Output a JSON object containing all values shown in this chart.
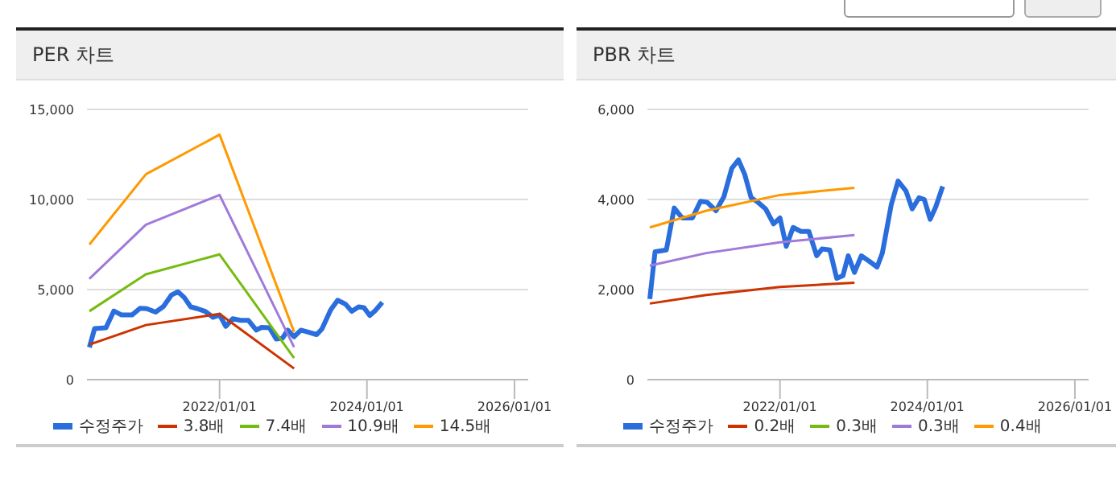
{
  "chart_data": [
    {
      "type": "line",
      "title": "PER 차트",
      "xlim": [
        "2020-03-15",
        "2026-03-10"
      ],
      "xticks": [
        {
          "value": "2022-01-01",
          "label": "2022/01/01"
        },
        {
          "value": "2024-01-01",
          "label": "2024/01/01"
        },
        {
          "value": "2026-01-01",
          "label": "2026/01/01"
        }
      ],
      "ylim": [
        0,
        15000
      ],
      "yticks": [
        {
          "value": 0,
          "label": "0"
        },
        {
          "value": 5000,
          "label": "5,000"
        },
        {
          "value": 10000,
          "label": "10,000"
        },
        {
          "value": 15000,
          "label": "15,000"
        }
      ],
      "grid": "y",
      "legend": "bottom",
      "series": [
        {
          "name": "수정주가",
          "color": "#2a6ddd",
          "x": [
            "2020-03-27",
            "2020-04-22",
            "2020-06-17",
            "2020-07-26",
            "2020-09-03",
            "2020-10-24",
            "2020-12-03",
            "2021-01-05",
            "2021-02-18",
            "2021-03-29",
            "2021-05-07",
            "2021-06-09",
            "2021-07-10",
            "2021-08-11",
            "2021-09-13",
            "2021-10-22",
            "2021-11-30",
            "2022-01-01",
            "2022-02-01",
            "2022-03-07",
            "2022-04-15",
            "2022-05-24",
            "2022-07-02",
            "2022-07-28",
            "2022-09-05",
            "2022-10-09",
            "2022-11-09",
            "2022-12-05",
            "2023-01-05",
            "2023-02-08",
            "2023-03-19",
            "2023-04-27",
            "2023-05-23",
            "2023-07-06",
            "2023-08-09",
            "2023-09-17",
            "2023-10-18",
            "2023-11-21",
            "2023-12-17",
            "2024-01-15",
            "2024-02-12",
            "2024-03-17"
          ],
          "values": [
            1790,
            2840,
            2880,
            3810,
            3590,
            3590,
            3960,
            3940,
            3750,
            4060,
            4690,
            4880,
            4560,
            4040,
            3940,
            3790,
            3460,
            3590,
            2960,
            3380,
            3290,
            3290,
            2750,
            2900,
            2880,
            2250,
            2310,
            2750,
            2380,
            2750,
            2630,
            2500,
            2810,
            3880,
            4410,
            4190,
            3790,
            4040,
            4000,
            3560,
            3840,
            4290
          ]
        },
        {
          "name": "3.8배",
          "color": "#cc3300",
          "x": [
            "2020-03-27",
            "2021-01-01",
            "2022-01-01",
            "2023-01-05"
          ],
          "values": [
            1950,
            3030,
            3650,
            620
          ]
        },
        {
          "name": "7.4배",
          "color": "#77bb11",
          "x": [
            "2020-03-27",
            "2021-01-01",
            "2022-01-01",
            "2023-01-05"
          ],
          "values": [
            3800,
            5850,
            6950,
            1200
          ]
        },
        {
          "name": "10.9배",
          "color": "#a07ad8",
          "x": [
            "2020-03-27",
            "2021-01-01",
            "2022-01-01",
            "2023-01-05"
          ],
          "values": [
            5600,
            8600,
            10250,
            1800
          ]
        },
        {
          "name": "14.5배",
          "color": "#ff9900",
          "x": [
            "2020-03-27",
            "2021-01-01",
            "2022-01-01",
            "2023-01-05"
          ],
          "values": [
            7500,
            11400,
            13600,
            2650
          ]
        }
      ]
    },
    {
      "type": "line",
      "title": "PBR 차트",
      "xlim": [
        "2020-03-15",
        "2026-03-10"
      ],
      "xticks": [
        {
          "value": "2022-01-01",
          "label": "2022/01/01"
        },
        {
          "value": "2024-01-01",
          "label": "2024/01/01"
        },
        {
          "value": "2026-01-01",
          "label": "2026/01/01"
        }
      ],
      "ylim": [
        0,
        6000
      ],
      "yticks": [
        {
          "value": 0,
          "label": "0"
        },
        {
          "value": 2000,
          "label": "2,000"
        },
        {
          "value": 4000,
          "label": "4,000"
        },
        {
          "value": 6000,
          "label": "6,000"
        }
      ],
      "grid": "y",
      "legend": "bottom",
      "series": [
        {
          "name": "수정주가",
          "color": "#2a6ddd",
          "x": [
            "2020-03-27",
            "2020-04-22",
            "2020-06-17",
            "2020-07-26",
            "2020-09-03",
            "2020-10-24",
            "2020-12-03",
            "2021-01-05",
            "2021-02-18",
            "2021-03-29",
            "2021-05-07",
            "2021-06-09",
            "2021-07-10",
            "2021-08-11",
            "2021-09-13",
            "2021-10-22",
            "2021-11-30",
            "2022-01-01",
            "2022-02-01",
            "2022-03-07",
            "2022-04-15",
            "2022-05-24",
            "2022-07-02",
            "2022-07-28",
            "2022-09-05",
            "2022-10-09",
            "2022-11-09",
            "2022-12-05",
            "2023-01-05",
            "2023-02-08",
            "2023-03-19",
            "2023-04-27",
            "2023-05-23",
            "2023-07-06",
            "2023-08-09",
            "2023-09-17",
            "2023-10-18",
            "2023-11-21",
            "2023-12-17",
            "2024-01-15",
            "2024-02-12",
            "2024-03-17"
          ],
          "values": [
            1790,
            2840,
            2880,
            3810,
            3590,
            3590,
            3960,
            3940,
            3750,
            4060,
            4690,
            4880,
            4560,
            4040,
            3940,
            3790,
            3460,
            3590,
            2960,
            3380,
            3290,
            3290,
            2750,
            2900,
            2880,
            2250,
            2310,
            2750,
            2380,
            2750,
            2630,
            2500,
            2810,
            3880,
            4410,
            4190,
            3790,
            4040,
            4000,
            3560,
            3840,
            4290
          ]
        },
        {
          "name": "0.2배",
          "color": "#cc3300",
          "x": [
            "2020-03-27",
            "2021-01-01",
            "2022-01-01",
            "2023-01-05"
          ],
          "values": [
            1690,
            1880,
            2060,
            2150
          ]
        },
        {
          "name": "0.3배",
          "color": "#77bb11"
        },
        {
          "name": "0.3배",
          "color": "#a07ad8",
          "x": [
            "2020-03-27",
            "2021-01-01",
            "2022-01-01",
            "2023-01-05"
          ],
          "values": [
            2530,
            2810,
            3050,
            3210
          ]
        },
        {
          "name": "0.4배",
          "color": "#ff9900",
          "x": [
            "2020-03-27",
            "2021-01-01",
            "2022-01-01",
            "2023-01-05"
          ],
          "values": [
            3380,
            3750,
            4100,
            4260
          ]
        }
      ]
    }
  ]
}
